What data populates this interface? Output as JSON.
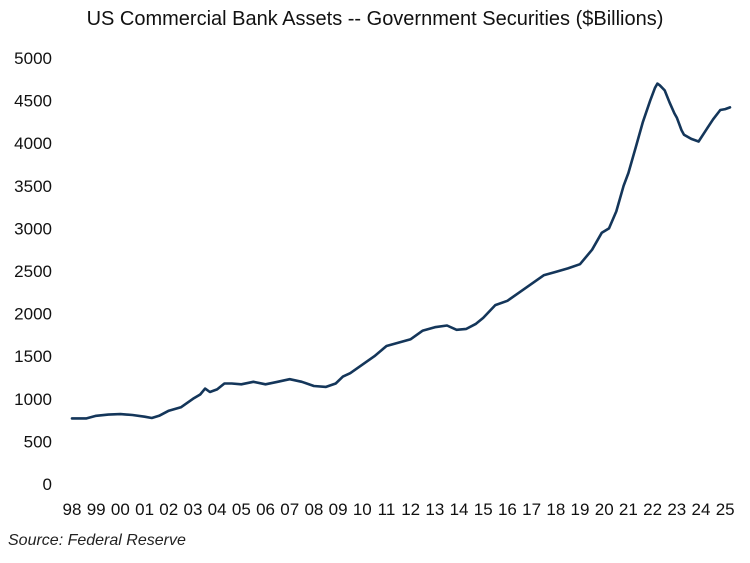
{
  "chart_data": {
    "type": "line",
    "title": "US Commercial Bank Assets -- Government Securities ($Billions)",
    "xlabel": "",
    "ylabel": "",
    "source": "Source: Federal Reserve",
    "grid": false,
    "legend": "none",
    "ylim": [
      0,
      5000
    ],
    "xlim": [
      1998.0,
      2025.2
    ],
    "y_ticks": [
      "0",
      "500",
      "1000",
      "1500",
      "2000",
      "2500",
      "3000",
      "3500",
      "4000",
      "4500",
      "5000"
    ],
    "x_ticks": [
      "98",
      "99",
      "00",
      "01",
      "02",
      "03",
      "04",
      "05",
      "06",
      "07",
      "08",
      "09",
      "10",
      "11",
      "12",
      "13",
      "14",
      "15",
      "16",
      "17",
      "18",
      "19",
      "20",
      "21",
      "22",
      "23",
      "24",
      "25"
    ],
    "line_color": "#14365a",
    "series": [
      {
        "x": [
          1998.0,
          1998.3,
          1998.6,
          1999.0,
          1999.5,
          2000.0,
          2000.5,
          2001.0,
          2001.3,
          2001.6,
          2002.0,
          2002.5,
          2003.0,
          2003.3,
          2003.5,
          2003.7,
          2004.0,
          2004.3,
          2004.6,
          2005.0,
          2005.5,
          2006.0,
          2006.5,
          2007.0,
          2007.5,
          2008.0,
          2008.5,
          2008.9,
          2009.2,
          2009.5,
          2010.0,
          2010.5,
          2011.0,
          2011.5,
          2012.0,
          2012.5,
          2013.0,
          2013.5,
          2013.9,
          2014.3,
          2014.7,
          2015.0,
          2015.5,
          2016.0,
          2016.5,
          2017.0,
          2017.5,
          2018.0,
          2018.5,
          2019.0,
          2019.5,
          2019.9,
          2020.2,
          2020.5,
          2020.8,
          2021.0,
          2021.3,
          2021.6,
          2021.9,
          2022.1,
          2022.2,
          2022.3,
          2022.5,
          2022.7,
          2022.9,
          2023.0,
          2023.2,
          2023.3,
          2023.6,
          2023.9,
          2024.2,
          2024.5,
          2024.8,
          2025.0,
          2025.2
        ],
        "values": [
          770,
          770,
          770,
          800,
          815,
          820,
          810,
          790,
          775,
          800,
          860,
          900,
          1000,
          1050,
          1120,
          1080,
          1110,
          1180,
          1180,
          1170,
          1200,
          1170,
          1200,
          1230,
          1200,
          1150,
          1140,
          1180,
          1260,
          1300,
          1400,
          1500,
          1620,
          1660,
          1700,
          1800,
          1840,
          1860,
          1810,
          1820,
          1880,
          1950,
          2100,
          2150,
          2250,
          2350,
          2450,
          2490,
          2530,
          2580,
          2750,
          2950,
          3000,
          3200,
          3500,
          3650,
          3950,
          4250,
          4500,
          4650,
          4700,
          4680,
          4620,
          4480,
          4350,
          4300,
          4150,
          4100,
          4050,
          4020,
          4150,
          4280,
          4390,
          4400,
          4420
        ]
      }
    ]
  }
}
